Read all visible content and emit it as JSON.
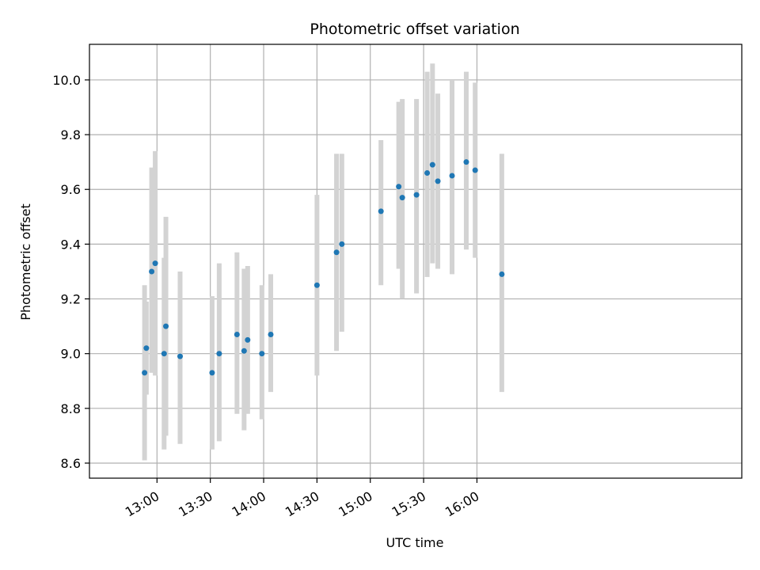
{
  "chart_data": {
    "type": "scatter",
    "title": "Photometric offset variation",
    "xlabel": "UTC time",
    "ylabel": "Photometric offset",
    "grid": true,
    "xlim_minutes": [
      742,
      1109
    ],
    "ylim": [
      8.545,
      10.13
    ],
    "x_ticks": [
      {
        "minutes": 780,
        "label": "13:00"
      },
      {
        "minutes": 810,
        "label": "13:30"
      },
      {
        "minutes": 840,
        "label": "14:00"
      },
      {
        "minutes": 870,
        "label": "14:30"
      },
      {
        "minutes": 900,
        "label": "15:00"
      },
      {
        "minutes": 930,
        "label": "15:30"
      },
      {
        "minutes": 960,
        "label": "16:00"
      }
    ],
    "y_ticks": [
      {
        "value": 8.6,
        "label": "8.6"
      },
      {
        "value": 8.8,
        "label": "8.8"
      },
      {
        "value": 9.0,
        "label": "9.0"
      },
      {
        "value": 9.2,
        "label": "9.2"
      },
      {
        "value": 9.4,
        "label": "9.4"
      },
      {
        "value": 9.6,
        "label": "9.6"
      },
      {
        "value": 9.8,
        "label": "9.8"
      },
      {
        "value": 10.0,
        "label": "10.0"
      }
    ],
    "points": [
      {
        "time": "12:53",
        "offset": 8.93,
        "lower": 8.61,
        "upper": 9.25
      },
      {
        "time": "12:54",
        "offset": 9.02,
        "lower": 8.85,
        "upper": 9.19
      },
      {
        "time": "12:57",
        "offset": 9.3,
        "lower": 8.93,
        "upper": 9.68
      },
      {
        "time": "12:59",
        "offset": 9.33,
        "lower": 8.92,
        "upper": 9.74
      },
      {
        "time": "13:04",
        "offset": 9.0,
        "lower": 8.65,
        "upper": 9.35
      },
      {
        "time": "13:05",
        "offset": 9.1,
        "lower": 8.7,
        "upper": 9.5
      },
      {
        "time": "13:13",
        "offset": 8.99,
        "lower": 8.67,
        "upper": 9.3
      },
      {
        "time": "13:31",
        "offset": 8.93,
        "lower": 8.65,
        "upper": 9.21
      },
      {
        "time": "13:35",
        "offset": 9.0,
        "lower": 8.68,
        "upper": 9.33
      },
      {
        "time": "13:45",
        "offset": 9.07,
        "lower": 8.78,
        "upper": 9.37
      },
      {
        "time": "13:49",
        "offset": 9.01,
        "lower": 8.72,
        "upper": 9.31
      },
      {
        "time": "13:51",
        "offset": 9.05,
        "lower": 8.78,
        "upper": 9.32
      },
      {
        "time": "13:59",
        "offset": 9.0,
        "lower": 8.76,
        "upper": 9.25
      },
      {
        "time": "14:04",
        "offset": 9.07,
        "lower": 8.86,
        "upper": 9.29
      },
      {
        "time": "14:30",
        "offset": 9.25,
        "lower": 8.92,
        "upper": 9.58
      },
      {
        "time": "14:41",
        "offset": 9.37,
        "lower": 9.01,
        "upper": 9.73
      },
      {
        "time": "14:44",
        "offset": 9.4,
        "lower": 9.08,
        "upper": 9.73
      },
      {
        "time": "15:06",
        "offset": 9.52,
        "lower": 9.25,
        "upper": 9.78
      },
      {
        "time": "15:16",
        "offset": 9.61,
        "lower": 9.31,
        "upper": 9.92
      },
      {
        "time": "15:18",
        "offset": 9.57,
        "lower": 9.2,
        "upper": 9.93
      },
      {
        "time": "15:26",
        "offset": 9.58,
        "lower": 9.22,
        "upper": 9.93
      },
      {
        "time": "15:32",
        "offset": 9.66,
        "lower": 9.28,
        "upper": 10.03
      },
      {
        "time": "15:35",
        "offset": 9.69,
        "lower": 9.33,
        "upper": 10.06
      },
      {
        "time": "15:38",
        "offset": 9.63,
        "lower": 9.31,
        "upper": 9.95
      },
      {
        "time": "15:46",
        "offset": 9.65,
        "lower": 9.29,
        "upper": 10.0
      },
      {
        "time": "15:54",
        "offset": 9.7,
        "lower": 9.38,
        "upper": 10.03
      },
      {
        "time": "15:59",
        "offset": 9.67,
        "lower": 9.35,
        "upper": 9.99
      },
      {
        "time": "16:14",
        "offset": 9.29,
        "lower": 8.86,
        "upper": 9.73
      }
    ],
    "colors": {
      "point": "#1f77b4",
      "errorbar": "#d3d3d3",
      "grid": "#b0b0b0",
      "axis": "#000000"
    }
  }
}
